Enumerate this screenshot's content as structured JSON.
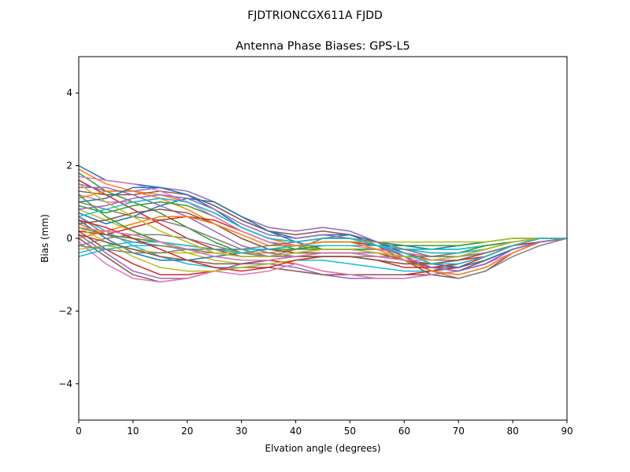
{
  "chart_data": {
    "type": "line",
    "suptitle": "FJDTRIONCGX611A FJDD",
    "title": "Antenna Phase Biases: GPS-L5",
    "xlabel": "Elvation angle (degrees)",
    "ylabel": "Bias (mm)",
    "xlim": [
      0,
      90
    ],
    "ylim": [
      -5,
      5
    ],
    "xticks": [
      0,
      10,
      20,
      30,
      40,
      50,
      60,
      70,
      80,
      90
    ],
    "xtick_labels": [
      "0",
      "10",
      "20",
      "30",
      "40",
      "50",
      "60",
      "70",
      "80",
      "90"
    ],
    "yticks": [
      -4,
      -2,
      0,
      2,
      4
    ],
    "ytick_labels": [
      "−4",
      "−2",
      "0",
      "2",
      "4"
    ],
    "grid": false,
    "legend": "none",
    "x": [
      0,
      5,
      10,
      15,
      20,
      25,
      30,
      35,
      40,
      45,
      50,
      55,
      60,
      65,
      70,
      75,
      80,
      85,
      90
    ],
    "palette": [
      "#1f77b4",
      "#ff7f0e",
      "#2ca02c",
      "#d62728",
      "#9467bd",
      "#8c564b",
      "#e377c2",
      "#7f7f7f",
      "#bcbd22",
      "#17becf"
    ],
    "series": [
      {
        "values": [
          2.0,
          1.6,
          1.5,
          1.4,
          1.2,
          0.9,
          0.5,
          0.2,
          -0.1,
          -0.3,
          -0.3,
          -0.3,
          -0.3,
          -0.3,
          -0.2,
          -0.1,
          0.0,
          0.0,
          0.0
        ]
      },
      {
        "values": [
          1.9,
          1.5,
          1.3,
          1.2,
          1.0,
          0.7,
          0.3,
          0.0,
          -0.2,
          -0.3,
          -0.3,
          -0.3,
          -0.3,
          -0.3,
          -0.3,
          -0.2,
          -0.1,
          0.0,
          0.0
        ]
      },
      {
        "values": [
          1.8,
          1.3,
          1.0,
          0.7,
          0.3,
          -0.1,
          -0.4,
          -0.5,
          -0.4,
          -0.3,
          -0.3,
          -0.3,
          -0.4,
          -0.5,
          -0.5,
          -0.4,
          -0.2,
          -0.1,
          0.0
        ]
      },
      {
        "values": [
          1.6,
          1.2,
          0.8,
          0.4,
          0.0,
          -0.3,
          -0.5,
          -0.5,
          -0.4,
          -0.3,
          -0.3,
          -0.4,
          -0.6,
          -0.8,
          -0.8,
          -0.6,
          -0.3,
          -0.1,
          0.0
        ]
      },
      {
        "values": [
          1.5,
          1.3,
          1.3,
          1.4,
          1.3,
          1.0,
          0.6,
          0.3,
          0.2,
          0.3,
          0.2,
          -0.1,
          -0.5,
          -0.9,
          -1.0,
          -0.8,
          -0.4,
          -0.1,
          0.0
        ]
      },
      {
        "values": [
          1.3,
          1.2,
          1.2,
          1.3,
          1.2,
          0.9,
          0.5,
          0.2,
          0.1,
          0.2,
          0.1,
          -0.2,
          -0.6,
          -1.0,
          -1.1,
          -0.9,
          -0.4,
          -0.1,
          0.0
        ]
      },
      {
        "values": [
          1.2,
          1.0,
          1.0,
          1.1,
          1.0,
          0.7,
          0.3,
          0.0,
          -0.1,
          0.0,
          0.0,
          -0.2,
          -0.5,
          -0.8,
          -0.9,
          -0.7,
          -0.3,
          -0.1,
          0.0
        ]
      },
      {
        "values": [
          1.0,
          0.8,
          0.6,
          0.5,
          0.3,
          0.0,
          -0.3,
          -0.5,
          -0.5,
          -0.5,
          -0.5,
          -0.6,
          -0.7,
          -0.7,
          -0.6,
          -0.4,
          -0.2,
          0.0,
          0.0
        ]
      },
      {
        "values": [
          0.8,
          0.5,
          0.2,
          -0.1,
          -0.4,
          -0.6,
          -0.7,
          -0.6,
          -0.5,
          -0.4,
          -0.4,
          -0.5,
          -0.6,
          -0.6,
          -0.5,
          -0.3,
          -0.1,
          0.0,
          0.0
        ]
      },
      {
        "values": [
          0.6,
          0.2,
          -0.2,
          -0.5,
          -0.7,
          -0.8,
          -0.8,
          -0.7,
          -0.6,
          -0.6,
          -0.7,
          -0.8,
          -0.9,
          -0.9,
          -0.7,
          -0.5,
          -0.2,
          0.0,
          0.0
        ]
      },
      {
        "values": [
          0.5,
          0.0,
          -0.4,
          -0.6,
          -0.6,
          -0.5,
          -0.4,
          -0.3,
          -0.2,
          -0.1,
          -0.1,
          -0.1,
          -0.2,
          -0.3,
          -0.3,
          -0.2,
          -0.1,
          0.0,
          0.0
        ]
      },
      {
        "values": [
          0.4,
          0.1,
          0.0,
          -0.1,
          -0.2,
          -0.3,
          -0.4,
          -0.4,
          -0.3,
          -0.2,
          -0.2,
          -0.2,
          -0.3,
          -0.4,
          -0.4,
          -0.3,
          -0.1,
          0.0,
          0.0
        ]
      },
      {
        "values": [
          0.3,
          0.1,
          0.0,
          -0.1,
          -0.2,
          -0.3,
          -0.3,
          -0.3,
          -0.3,
          -0.2,
          -0.2,
          -0.2,
          -0.2,
          -0.2,
          -0.2,
          -0.1,
          0.0,
          0.0,
          0.0
        ]
      },
      {
        "values": [
          0.2,
          -0.3,
          -0.7,
          -1.0,
          -1.0,
          -0.9,
          -0.7,
          -0.6,
          -0.7,
          -0.9,
          -1.0,
          -1.0,
          -1.0,
          -0.9,
          -0.8,
          -0.5,
          -0.2,
          0.0,
          0.0
        ]
      },
      {
        "values": [
          0.1,
          -0.4,
          -0.9,
          -1.1,
          -1.1,
          -0.9,
          -0.7,
          -0.7,
          -0.8,
          -1.0,
          -1.1,
          -1.1,
          -1.1,
          -1.0,
          -0.9,
          -0.6,
          -0.3,
          -0.1,
          0.0
        ]
      },
      {
        "values": [
          0.0,
          -0.5,
          -1.0,
          -1.2,
          -1.1,
          -0.9,
          -0.8,
          -0.8,
          -0.9,
          -1.0,
          -1.0,
          -1.0,
          -1.0,
          -1.0,
          -0.9,
          -0.6,
          -0.3,
          -0.1,
          0.0
        ]
      },
      {
        "values": [
          -0.1,
          -0.7,
          -1.1,
          -1.2,
          -1.1,
          -0.9,
          -1.0,
          -0.9,
          -0.7,
          -0.9,
          -1.0,
          -1.1,
          -1.1,
          -1.0,
          -0.9,
          -0.7,
          -0.4,
          -0.1,
          0.0
        ]
      },
      {
        "values": [
          -0.2,
          0.0,
          0.1,
          0.1,
          0.0,
          -0.2,
          -0.4,
          -0.5,
          -0.3,
          0.0,
          0.1,
          -0.1,
          -0.5,
          -0.9,
          -1.1,
          -0.9,
          -0.5,
          -0.2,
          0.0
        ]
      },
      {
        "values": [
          -0.3,
          -0.2,
          -0.3,
          -0.4,
          -0.4,
          -0.4,
          -0.4,
          -0.3,
          -0.2,
          -0.1,
          -0.1,
          -0.1,
          -0.1,
          -0.1,
          -0.1,
          -0.1,
          0.0,
          0.0,
          0.0
        ]
      },
      {
        "values": [
          -0.5,
          -0.3,
          -0.2,
          -0.2,
          -0.3,
          -0.3,
          -0.4,
          -0.3,
          -0.2,
          -0.2,
          -0.2,
          -0.2,
          -0.3,
          -0.3,
          -0.3,
          -0.2,
          -0.1,
          0.0,
          0.0
        ]
      },
      {
        "values": [
          0.7,
          0.4,
          0.6,
          0.9,
          1.1,
          1.0,
          0.6,
          0.2,
          0.0,
          0.1,
          0.1,
          -0.1,
          -0.4,
          -0.7,
          -0.8,
          -0.6,
          -0.3,
          -0.1,
          0.0
        ]
      },
      {
        "values": [
          1.1,
          1.3,
          1.3,
          1.1,
          0.8,
          0.4,
          0.0,
          -0.3,
          -0.4,
          -0.4,
          -0.4,
          -0.5,
          -0.6,
          -0.6,
          -0.5,
          -0.3,
          -0.1,
          0.0,
          0.0
        ]
      },
      {
        "values": [
          0.9,
          0.7,
          0.9,
          1.0,
          0.9,
          0.6,
          0.2,
          -0.1,
          -0.3,
          -0.3,
          -0.3,
          -0.4,
          -0.5,
          -0.5,
          -0.4,
          -0.2,
          -0.1,
          0.0,
          0.0
        ]
      },
      {
        "values": [
          0.2,
          0.1,
          0.3,
          0.5,
          0.6,
          0.5,
          0.2,
          -0.1,
          -0.2,
          -0.1,
          -0.1,
          -0.2,
          -0.4,
          -0.6,
          -0.6,
          -0.5,
          -0.2,
          -0.1,
          0.0
        ]
      },
      {
        "values": [
          1.4,
          1.4,
          1.2,
          0.9,
          0.6,
          0.2,
          -0.2,
          -0.4,
          -0.5,
          -0.4,
          -0.4,
          -0.4,
          -0.5,
          -0.6,
          -0.6,
          -0.4,
          -0.2,
          0.0,
          0.0
        ]
      },
      {
        "values": [
          0.4,
          0.5,
          0.7,
          0.8,
          0.7,
          0.4,
          0.0,
          -0.3,
          -0.4,
          -0.4,
          -0.4,
          -0.5,
          -0.6,
          -0.7,
          -0.6,
          -0.4,
          -0.2,
          0.0,
          0.0
        ]
      },
      {
        "values": [
          1.7,
          1.6,
          1.5,
          1.3,
          1.0,
          0.6,
          0.2,
          -0.1,
          -0.2,
          -0.2,
          -0.2,
          -0.3,
          -0.4,
          -0.5,
          -0.5,
          -0.4,
          -0.2,
          0.0,
          0.0
        ]
      },
      {
        "values": [
          0.6,
          0.1,
          -0.1,
          -0.2,
          -0.3,
          -0.4,
          -0.5,
          -0.5,
          -0.5,
          -0.5,
          -0.5,
          -0.5,
          -0.5,
          -0.5,
          -0.4,
          -0.3,
          -0.1,
          0.0,
          0.0
        ]
      },
      {
        "values": [
          0.3,
          -0.1,
          -0.5,
          -0.8,
          -0.9,
          -0.9,
          -0.8,
          -0.7,
          -0.6,
          -0.5,
          -0.5,
          -0.6,
          -0.7,
          -0.7,
          -0.6,
          -0.4,
          -0.2,
          0.0,
          0.0
        ]
      },
      {
        "values": [
          -0.4,
          -0.2,
          -0.1,
          -0.1,
          -0.2,
          -0.3,
          -0.3,
          -0.3,
          -0.2,
          -0.2,
          -0.2,
          -0.2,
          -0.3,
          -0.4,
          -0.4,
          -0.3,
          -0.1,
          0.0,
          0.0
        ]
      },
      {
        "values": [
          1.0,
          1.1,
          1.4,
          1.4,
          1.2,
          0.8,
          0.3,
          0.0,
          -0.1,
          0.0,
          0.0,
          -0.2,
          -0.5,
          -0.8,
          -0.9,
          -0.7,
          -0.3,
          -0.1,
          0.0
        ]
      },
      {
        "values": [
          0.0,
          0.2,
          0.4,
          0.6,
          0.6,
          0.4,
          0.1,
          -0.2,
          -0.2,
          -0.1,
          -0.1,
          -0.3,
          -0.6,
          -0.9,
          -1.0,
          -0.8,
          -0.4,
          -0.1,
          0.0
        ]
      },
      {
        "values": [
          1.2,
          0.6,
          0.2,
          -0.1,
          -0.3,
          -0.5,
          -0.6,
          -0.6,
          -0.5,
          -0.4,
          -0.4,
          -0.5,
          -0.6,
          -0.6,
          -0.5,
          -0.3,
          -0.1,
          0.0,
          0.0
        ]
      },
      {
        "values": [
          0.5,
          0.3,
          0.0,
          -0.3,
          -0.6,
          -0.8,
          -0.9,
          -0.8,
          -0.6,
          -0.5,
          -0.5,
          -0.6,
          -0.8,
          -0.8,
          -0.7,
          -0.5,
          -0.2,
          0.0,
          0.0
        ]
      },
      {
        "values": [
          0.8,
          0.9,
          1.1,
          1.2,
          1.1,
          0.8,
          0.4,
          0.1,
          0.0,
          0.1,
          0.0,
          -0.2,
          -0.5,
          -0.8,
          -0.9,
          -0.7,
          -0.3,
          -0.1,
          0.0
        ]
      },
      {
        "values": [
          0.1,
          -0.1,
          -0.3,
          -0.5,
          -0.6,
          -0.7,
          -0.7,
          -0.6,
          -0.5,
          -0.5,
          -0.5,
          -0.6,
          -0.7,
          -0.7,
          -0.6,
          -0.4,
          -0.2,
          0.0,
          0.0
        ]
      },
      {
        "values": [
          0.3,
          0.2,
          0.1,
          -0.1,
          -0.3,
          -0.5,
          -0.6,
          -0.6,
          -0.5,
          -0.4,
          -0.4,
          -0.5,
          -0.6,
          -0.6,
          -0.5,
          -0.3,
          -0.1,
          0.0,
          0.0
        ]
      },
      {
        "values": [
          -0.2,
          -0.3,
          -0.4,
          -0.4,
          -0.3,
          -0.3,
          -0.3,
          -0.2,
          -0.1,
          0.0,
          0.0,
          -0.1,
          -0.3,
          -0.5,
          -0.5,
          -0.4,
          -0.2,
          0.0,
          0.0
        ]
      },
      {
        "values": [
          1.5,
          1.0,
          0.6,
          0.2,
          -0.1,
          -0.4,
          -0.5,
          -0.5,
          -0.4,
          -0.3,
          -0.3,
          -0.4,
          -0.5,
          -0.6,
          -0.5,
          -0.3,
          -0.1,
          0.0,
          0.0
        ]
      },
      {
        "values": [
          0.6,
          0.8,
          1.0,
          1.1,
          1.0,
          0.7,
          0.3,
          0.0,
          -0.1,
          0.0,
          0.0,
          -0.2,
          -0.4,
          -0.7,
          -0.7,
          -0.5,
          -0.2,
          0.0,
          0.0
        ]
      }
    ]
  }
}
